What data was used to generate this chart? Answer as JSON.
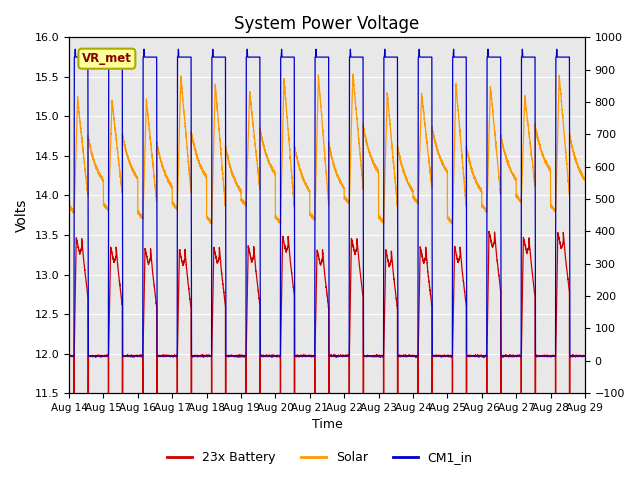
{
  "title": "System Power Voltage",
  "xlabel": "Time",
  "ylabel_left": "Volts",
  "ylabel_right": "",
  "ylim_left": [
    11.5,
    16.0
  ],
  "ylim_right": [
    -100,
    1000
  ],
  "yticks_left": [
    11.5,
    12.0,
    12.5,
    13.0,
    13.5,
    14.0,
    14.5,
    15.0,
    15.5,
    16.0
  ],
  "yticks_right": [
    -100,
    0,
    100,
    200,
    300,
    400,
    500,
    600,
    700,
    800,
    900,
    1000
  ],
  "num_days": 15,
  "day_labels": [
    "Aug 14",
    "Aug 15",
    "Aug 16",
    "Aug 17",
    "Aug 18",
    "Aug 19",
    "Aug 20",
    "Aug 21",
    "Aug 22",
    "Aug 23",
    "Aug 24",
    "Aug 25",
    "Aug 26",
    "Aug 27",
    "Aug 28",
    "Aug 29"
  ],
  "background_color": "#ffffff",
  "plot_bg_color": "#e8e8e8",
  "grid_color": "#ffffff",
  "battery_color": "#cc0000",
  "solar_color": "#ff9900",
  "cm1_color": "#0000cc",
  "legend_items": [
    "23x Battery",
    "Solar",
    "CM1_in"
  ],
  "vr_met_box_facecolor": "#ffff99",
  "vr_met_box_edgecolor": "#aaaa00",
  "vr_met_text_color": "#880000"
}
